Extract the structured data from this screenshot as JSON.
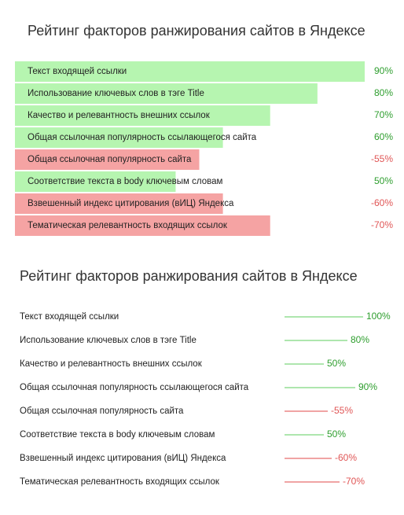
{
  "chart_data": [
    {
      "type": "bar",
      "title": "Рейтинг факторов ранжирования сайтов в Яндексе",
      "categories": [
        "Текст входящей ссылки",
        "Использование ключевых слов в тэге Title",
        "Качество и релевантность внешних ссылок",
        "Общая ссылочная популярность ссылающегося сайта",
        "Общая ссылочная популярность сайта",
        "Соответствие текста в body ключевым словам",
        "Взвешенный индекс цитирования (вИЦ) Яндекса",
        "Тематическая релевантность входящих ссылок"
      ],
      "values": [
        90,
        80,
        70,
        60,
        -55,
        50,
        -60,
        -70
      ],
      "value_labels": [
        "90%",
        "80%",
        "70%",
        "60%",
        "-55%",
        "50%",
        "-60%",
        "-70%"
      ],
      "xlim": [
        16,
        90
      ],
      "positive_color": "#b6f5b0",
      "negative_color": "#f5a3a3",
      "positive_label_color": "#2e9e2e",
      "negative_label_color": "#e05555"
    },
    {
      "type": "stick",
      "title": "Рейтинг факторов ранжирования сайтов в Яндексе",
      "categories": [
        "Текст входящей ссылки",
        "Использование ключевых слов в тэге Title",
        "Качество и релевантность внешних ссылок",
        "Общая ссылочная популярность ссылающегося сайта",
        "Общая ссылочная популярность сайта",
        "Соответствие текста в body ключевым словам",
        "Взвешенный индекс цитирования (вИЦ) Яндекса",
        "Тематическая релевантность входящих ссылок"
      ],
      "values": [
        100,
        80,
        50,
        90,
        -55,
        50,
        -60,
        -70
      ],
      "value_labels": [
        "100%",
        "80%",
        "50%",
        "90%",
        "-55%",
        "50%",
        "-60%",
        "-70%"
      ],
      "xlim": [
        0,
        100
      ],
      "positive_color": "#5ccc5c",
      "negative_color": "#e04848",
      "positive_label_color": "#2e9e2e",
      "negative_label_color": "#e05555"
    }
  ]
}
